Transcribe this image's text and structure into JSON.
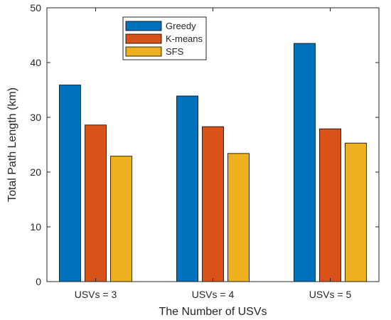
{
  "chart_data": {
    "type": "bar",
    "title": "",
    "xlabel": "The Number of USVs",
    "ylabel": "Total Path Length  (km)",
    "categories": [
      "USVs = 3",
      "USVs = 4",
      "USVs = 5"
    ],
    "series": [
      {
        "name": "Greedy",
        "color": "#0072BD",
        "values": [
          35.9,
          33.9,
          43.5
        ]
      },
      {
        "name": "K-means",
        "color": "#D95319",
        "values": [
          28.6,
          28.3,
          27.9
        ]
      },
      {
        "name": "SFS",
        "color": "#EDB120",
        "values": [
          22.9,
          23.4,
          25.3
        ]
      }
    ],
    "ylim": [
      0,
      50
    ],
    "yticks": [
      0,
      10,
      20,
      30,
      40,
      50
    ],
    "grid": false,
    "legend_position": "top-center"
  }
}
